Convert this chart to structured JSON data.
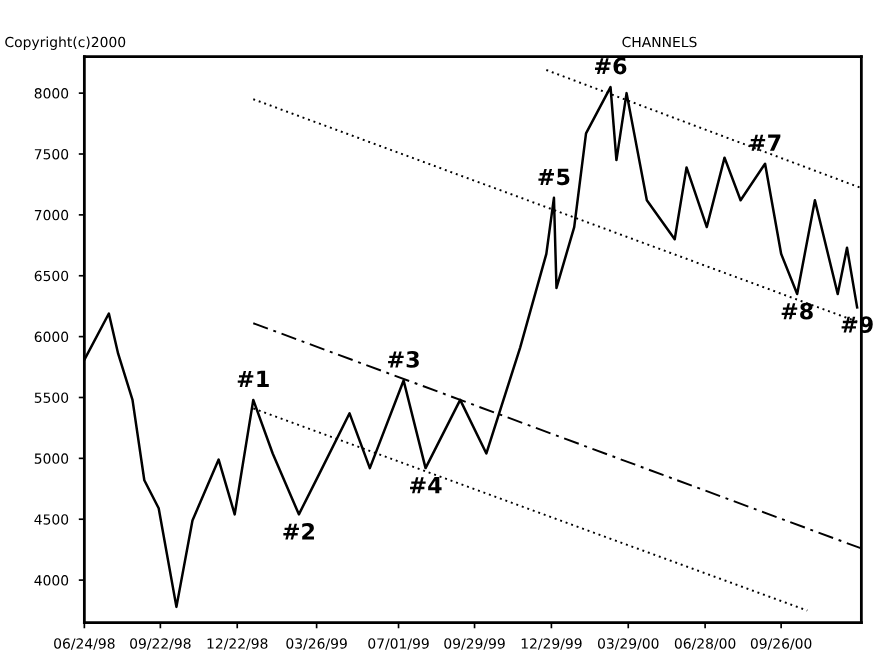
{
  "chart_data": {
    "type": "line",
    "title": "CHANNELS",
    "annotations": [
      "Copyright(c)2000",
      {
        "text": "#1",
        "x": "1999-01-10",
        "y": 5480
      },
      {
        "text": "#2",
        "x": "1999-03-05",
        "y": 4540
      },
      {
        "text": "#3",
        "x": "1999-07-07",
        "y": 5640
      },
      {
        "text": "#4",
        "x": "1999-08-02",
        "y": 4920
      },
      {
        "text": "#5",
        "x": "2000-01-01",
        "y": 7140
      },
      {
        "text": "#6",
        "x": "2000-03-08",
        "y": 8050
      },
      {
        "text": "#7",
        "x": "2000-09-07",
        "y": 7420
      },
      {
        "text": "#8",
        "x": "2000-10-15",
        "y": 6350
      },
      {
        "text": "#9",
        "x": "2000-12-25",
        "y": 6240
      }
    ],
    "series": [
      {
        "color": "#000000",
        "line_style": "solid",
        "x": [
          "1998-06-24",
          "1998-07-23",
          "1998-08-03",
          "1998-08-20",
          "1998-09-03",
          "1998-09-20",
          "1998-10-11",
          "1998-10-30",
          "1998-11-30",
          "1998-12-19",
          "1999-01-10",
          "1999-02-02",
          "1999-03-05",
          "1999-03-29",
          "1999-05-04",
          "1999-05-28",
          "1999-07-07",
          "1999-08-02",
          "1999-09-12",
          "1999-10-13",
          "1999-11-22",
          "1999-12-23",
          "2000-01-01",
          "2000-01-04",
          "2000-01-25",
          "2000-02-08",
          "2000-03-08",
          "2000-03-15",
          "2000-03-27",
          "2000-04-20",
          "2000-05-23",
          "2000-06-06",
          "2000-06-30",
          "2000-07-21",
          "2000-08-09",
          "2000-09-07",
          "2000-09-26",
          "2000-10-15",
          "2000-11-05",
          "2000-12-02",
          "2000-12-13",
          "2000-12-25"
        ],
        "values": [
          5810,
          6190,
          5860,
          5480,
          4820,
          4590,
          3780,
          4490,
          4990,
          4540,
          5480,
          5040,
          4540,
          4870,
          5370,
          4920,
          5640,
          4920,
          5480,
          5040,
          5910,
          6680,
          7140,
          6400,
          6900,
          7670,
          8050,
          7450,
          8000,
          7120,
          6800,
          7390,
          6900,
          7470,
          7120,
          7420,
          6680,
          6350,
          7120,
          6350,
          6730,
          6240
        ]
      },
      {
        "color": "#000000",
        "line_style": "dotted",
        "x": [
          "1999-12-23",
          "2000-12-30"
        ],
        "values": [
          8190,
          7220
        ]
      },
      {
        "color": "#000000",
        "line_style": "dotted",
        "x": [
          "1999-01-10",
          "2000-12-30"
        ],
        "values": [
          7950,
          6110
        ]
      },
      {
        "color": "#000000",
        "line_style": "dashed",
        "x": [
          "1999-01-10",
          "2000-12-30"
        ],
        "values": [
          6110,
          4260
        ]
      },
      {
        "color": "#000000",
        "line_style": "dotted",
        "x": [
          "1999-01-10",
          "2000-10-27"
        ],
        "values": [
          5410,
          3750
        ]
      }
    ],
    "xlim": [
      "1998-06-24",
      "2000-12-30"
    ],
    "xticks": [
      {
        "value": "1998-06-24",
        "label": "06/24/98"
      },
      {
        "value": "1998-09-22",
        "label": "09/22/98"
      },
      {
        "value": "1998-12-22",
        "label": "12/22/98"
      },
      {
        "value": "1999-03-26",
        "label": "03/26/99"
      },
      {
        "value": "1999-07-01",
        "label": "07/01/99"
      },
      {
        "value": "1999-09-29",
        "label": "09/29/99"
      },
      {
        "value": "1999-12-29",
        "label": "12/29/99"
      },
      {
        "value": "2000-03-29",
        "label": "03/29/00"
      },
      {
        "value": "2000-06-28",
        "label": "06/28/00"
      },
      {
        "value": "2000-09-26",
        "label": "09/26/00"
      }
    ],
    "ylim": [
      3650,
      8300
    ],
    "yticks": [
      4000,
      4500,
      5000,
      5500,
      6000,
      6500,
      7000,
      7500,
      8000
    ],
    "grid": false,
    "legend": false,
    "marker": "none"
  }
}
